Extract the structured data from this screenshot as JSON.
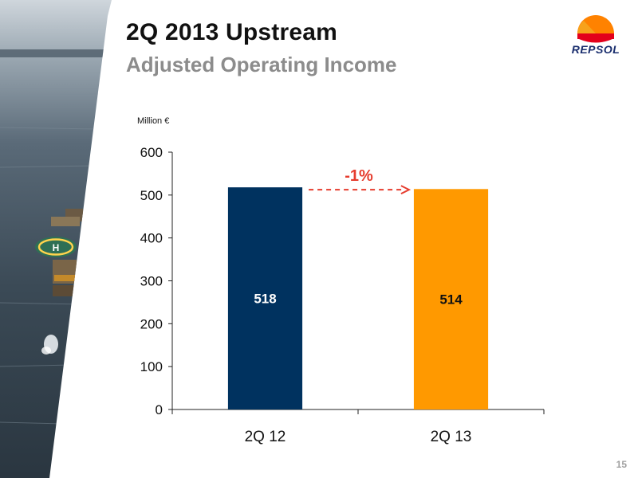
{
  "slide": {
    "title": "2Q 2013 Upstream",
    "subtitle": "Adjusted Operating Income",
    "unit_label": "Million €",
    "page_number": "15",
    "logo_text": "REPSOL",
    "helipad_marker": "H"
  },
  "colors": {
    "bar_2q12": "#00325f",
    "bar_2q13": "#ff9900",
    "change_arrow": "#e63c2e",
    "logo_blue": "#1a2e6e",
    "logo_red": "#e3001b",
    "logo_orange": "#ff8200"
  },
  "chart_data": {
    "type": "bar",
    "categories": [
      "2Q 12",
      "2Q 13"
    ],
    "values": [
      518,
      514
    ],
    "data_labels": [
      "518",
      "514"
    ],
    "ylim": [
      0,
      600
    ],
    "yticks": [
      0,
      100,
      200,
      300,
      400,
      500,
      600
    ],
    "ytick_labels": [
      "0",
      "100",
      "200",
      "300",
      "400",
      "500",
      "600"
    ],
    "grid": false,
    "annotation": {
      "text": "-1%",
      "from_category": "2Q 12",
      "to_category": "2Q 13",
      "arrow_style": "dashed"
    }
  }
}
